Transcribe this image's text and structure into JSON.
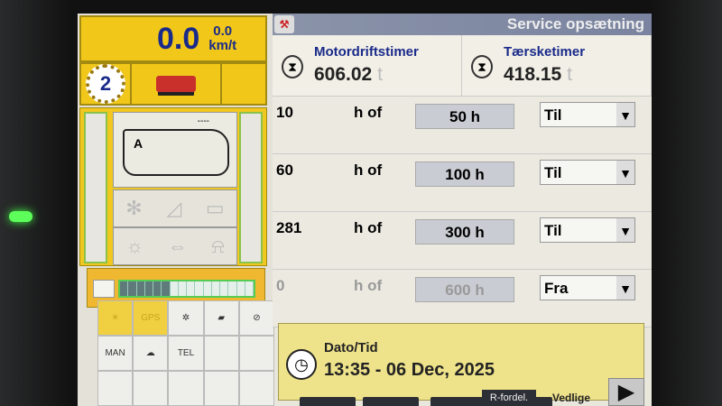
{
  "left_panel": {
    "speed_value": "0.0",
    "speed_small": "0.0",
    "speed_unit": "km/t",
    "gear": "2",
    "combine_mode": "A",
    "combine_dashes": "----",
    "grid_gps": "GPS",
    "grid_man": "MAN",
    "grid_tel": "TEL"
  },
  "header": {
    "title": "Service opsætning"
  },
  "counters": [
    {
      "label": "Motordriftstimer",
      "value": "606.02",
      "unit": "t",
      "icon": "engine-hourglass-icon"
    },
    {
      "label": "Tærsketimer",
      "value": "418.15",
      "unit": "t",
      "icon": "threshing-hourglass-icon"
    }
  ],
  "service_rows": [
    {
      "current": "10",
      "of": "h of",
      "interval": "50 h",
      "state": "Til",
      "enabled": true
    },
    {
      "current": "60",
      "of": "h of",
      "interval": "100 h",
      "state": "Til",
      "enabled": true
    },
    {
      "current": "281",
      "of": "h of",
      "interval": "300 h",
      "state": "Til",
      "enabled": true
    },
    {
      "current": "0",
      "of": "h of",
      "interval": "600 h",
      "state": "Fra",
      "enabled": false
    }
  ],
  "datetime": {
    "label": "Dato/Tid",
    "value": "13:35 - 06 Dec, 2025"
  },
  "softkeys": {
    "r_fordel": "R-fordel.",
    "vedlige": "Vedlige"
  },
  "load_level_segments_filled": 6,
  "colors": {
    "title_bar": "#8a93a8",
    "panel_yellow": "#f1c819",
    "label_blue": "#1a2a8a"
  }
}
